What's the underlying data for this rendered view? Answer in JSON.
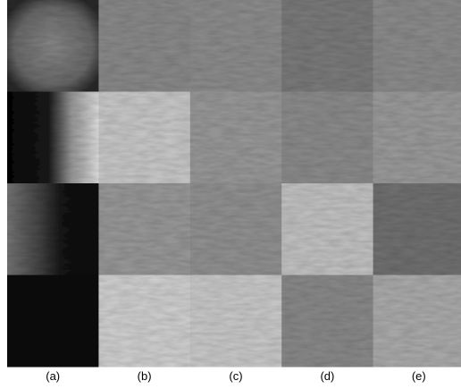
{
  "figure": {
    "labels": [
      "(a)",
      "(b)",
      "(c)",
      "(d)",
      "(e)"
    ]
  }
}
